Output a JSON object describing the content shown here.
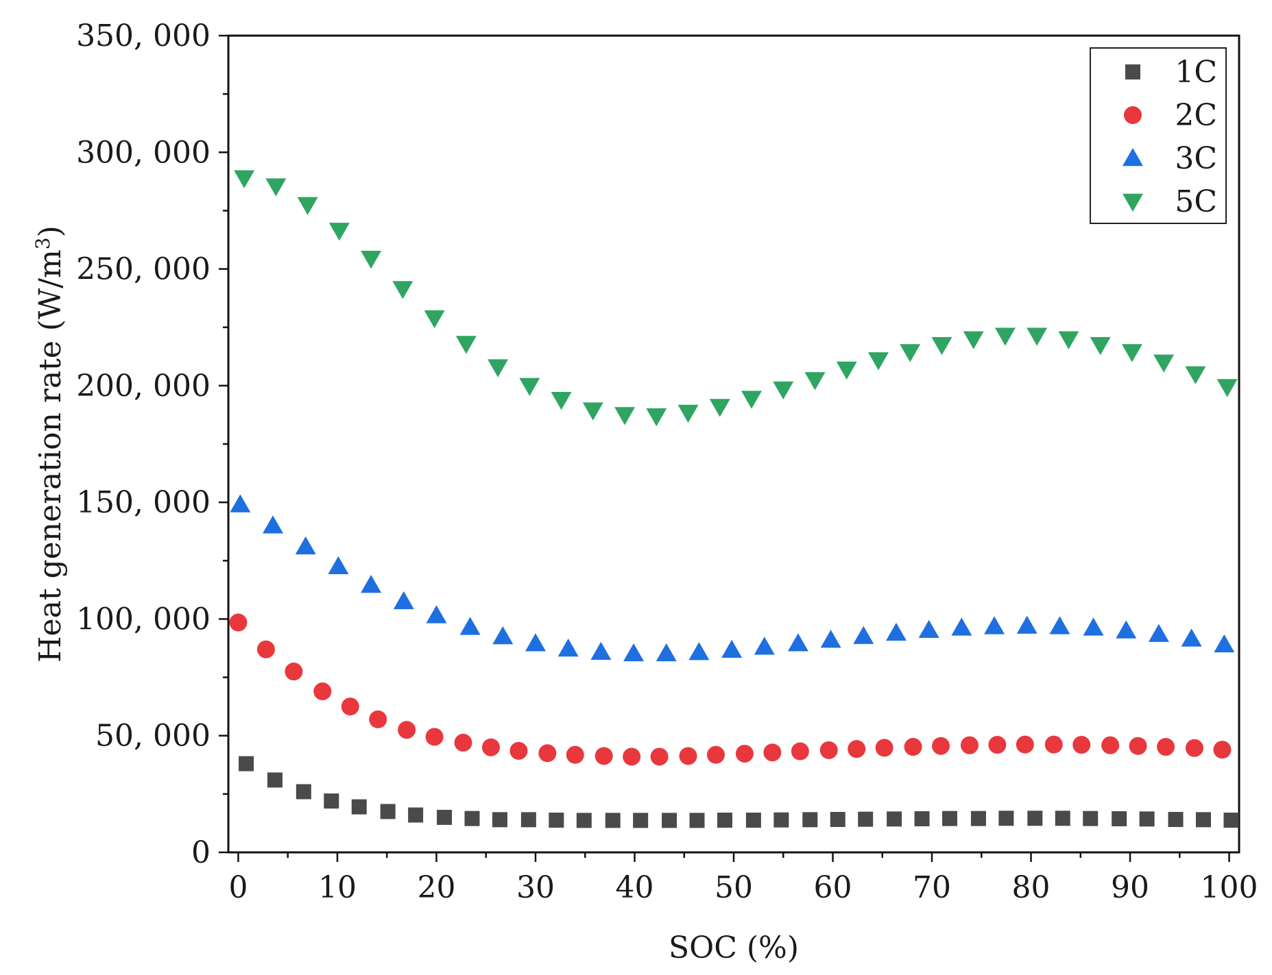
{
  "chart_data": {
    "type": "scatter",
    "title": "",
    "xlabel": "SOC (%)",
    "ylabel": "Heat generation rate (W/m",
    "ylabel_superscript": "3",
    "ylabel_suffix": ")",
    "xlim": [
      -1,
      101
    ],
    "ylim": [
      0,
      350000
    ],
    "x_ticks": [
      0,
      10,
      20,
      30,
      40,
      50,
      60,
      70,
      80,
      90,
      100
    ],
    "x_tick_labels": [
      "0",
      "10",
      "20",
      "30",
      "40",
      "50",
      "60",
      "70",
      "80",
      "90",
      "100"
    ],
    "y_ticks": [
      0,
      50000,
      100000,
      150000,
      200000,
      250000,
      300000,
      350000
    ],
    "y_tick_labels": [
      "0",
      "50, 000",
      "100, 000",
      "150, 000",
      "200, 000",
      "250, 000",
      "300, 000",
      "350, 000"
    ],
    "grid": false,
    "legend_position": "top-right",
    "series": [
      {
        "name": "1C",
        "marker": "square",
        "color": "#4a4a4a",
        "x": [
          0.8,
          3.7,
          6.6,
          9.4,
          12.2,
          15.1,
          17.9,
          20.8,
          23.6,
          26.4,
          29.3,
          32.1,
          34.9,
          37.8,
          40.6,
          43.5,
          46.3,
          49.1,
          52.0,
          54.8,
          57.7,
          60.5,
          63.3,
          66.2,
          69.0,
          71.8,
          74.7,
          77.5,
          80.4,
          83.2,
          86.0,
          88.9,
          91.7,
          94.6,
          97.4,
          100.2
        ],
        "values": [
          38000,
          31000,
          26000,
          22000,
          19500,
          17500,
          16000,
          15000,
          14500,
          14000,
          14000,
          13800,
          13700,
          13700,
          13700,
          13700,
          13700,
          13800,
          13800,
          13900,
          14000,
          14100,
          14200,
          14300,
          14400,
          14500,
          14500,
          14600,
          14600,
          14600,
          14500,
          14400,
          14300,
          14100,
          14000,
          13800
        ]
      },
      {
        "name": "2C",
        "marker": "circle",
        "color": "#e8383d",
        "x": [
          0,
          2.8,
          5.6,
          8.5,
          11.3,
          14.1,
          17.0,
          19.8,
          22.7,
          25.5,
          28.3,
          31.2,
          34.0,
          36.9,
          39.7,
          42.5,
          45.4,
          48.2,
          51.1,
          53.9,
          56.7,
          59.6,
          62.4,
          65.2,
          68.1,
          70.9,
          73.8,
          76.6,
          79.4,
          82.3,
          85.1,
          88.0,
          90.8,
          93.6,
          96.5,
          99.3
        ],
        "values": [
          98500,
          87000,
          77500,
          69000,
          62500,
          57000,
          52500,
          49500,
          47000,
          45000,
          43500,
          42500,
          41800,
          41300,
          41000,
          41000,
          41300,
          41800,
          42300,
          42800,
          43300,
          43800,
          44300,
          44800,
          45200,
          45600,
          45900,
          46100,
          46200,
          46200,
          46100,
          45900,
          45600,
          45200,
          44700,
          44000
        ]
      },
      {
        "name": "3C",
        "marker": "triangle-up",
        "color": "#1e6fe0",
        "x": [
          0.2,
          3.5,
          6.8,
          10.1,
          13.4,
          16.7,
          20.0,
          23.4,
          26.7,
          30.0,
          33.3,
          36.6,
          39.9,
          43.2,
          46.5,
          49.8,
          53.1,
          56.5,
          59.8,
          63.1,
          66.4,
          69.7,
          73.0,
          76.3,
          79.6,
          82.9,
          86.3,
          89.6,
          92.9,
          96.2,
          99.5
        ],
        "values": [
          149000,
          140000,
          131000,
          122500,
          114500,
          107500,
          101500,
          96500,
          92500,
          89500,
          87200,
          85800,
          85200,
          85200,
          85700,
          86700,
          88000,
          89500,
          91000,
          92600,
          94000,
          95200,
          96200,
          96800,
          97000,
          96800,
          96200,
          95000,
          93500,
          91500,
          89000
        ]
      },
      {
        "name": "5C",
        "marker": "triangle-down",
        "color": "#2fa561",
        "x": [
          0.6,
          3.8,
          7.0,
          10.2,
          13.4,
          16.6,
          19.8,
          23.0,
          26.2,
          29.4,
          32.6,
          35.8,
          39.0,
          42.2,
          45.4,
          48.6,
          51.8,
          55.0,
          58.2,
          61.4,
          64.6,
          67.8,
          71.0,
          74.2,
          77.4,
          80.6,
          83.8,
          87.0,
          90.2,
          93.4,
          96.6,
          99.8
        ],
        "values": [
          289000,
          285500,
          277500,
          266500,
          254500,
          241500,
          229000,
          218000,
          208000,
          200000,
          194000,
          189500,
          187500,
          187000,
          188500,
          191000,
          194500,
          198500,
          202500,
          207000,
          211000,
          214500,
          217500,
          220000,
          221500,
          221500,
          220000,
          217500,
          214500,
          210000,
          205000,
          199500
        ]
      }
    ]
  }
}
